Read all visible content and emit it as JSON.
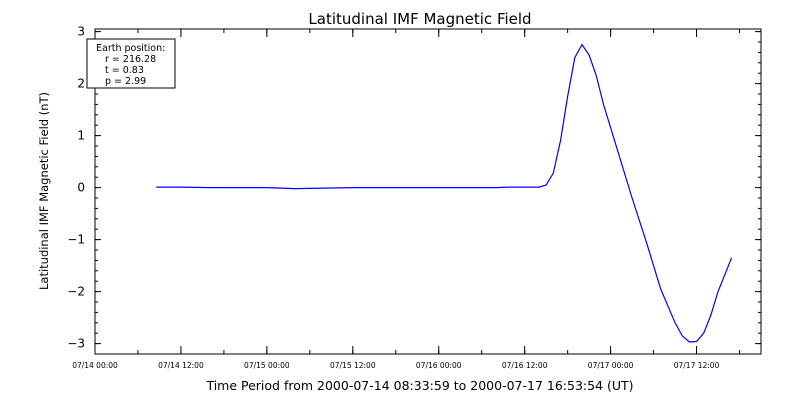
{
  "chart_data": {
    "type": "line",
    "title": "Latitudinal IMF Magnetic Field",
    "xlabel": "Time Period from 2000-07-14 08:33:59 to 2000-07-17 16:53:54 (UT)",
    "ylabel": "Latitudinal IMF Magnetic Field (nT)",
    "xlim": [
      "2000-07-14 00:00",
      "2000-07-17 21:00"
    ],
    "ylim": [
      -3.2,
      3.05
    ],
    "x_ticks": [
      "07/14 00:00",
      "07/14 12:00",
      "07/15 00:00",
      "07/15 12:00",
      "07/16 00:00",
      "07/16 12:00",
      "07/17 00:00",
      "07/17 12:00"
    ],
    "y_ticks": [
      "3",
      "2",
      "1",
      "0",
      "−1",
      "−2",
      "−3"
    ],
    "grid": false,
    "line_color": "#0000ff",
    "legend": {
      "placement": "top-left",
      "title": "Earth position:",
      "lines": [
        "r = 216.28",
        "t = 0.83",
        "p = 2.99"
      ]
    },
    "series": [
      {
        "points": [
          [
            "2000-07-14 08:34",
            0.01
          ],
          [
            "2000-07-14 12:00",
            0.01
          ],
          [
            "2000-07-14 16:00",
            0.0
          ],
          [
            "2000-07-15 00:00",
            0.0
          ],
          [
            "2000-07-15 04:00",
            -0.02
          ],
          [
            "2000-07-15 12:00",
            0.0
          ],
          [
            "2000-07-16 00:00",
            0.0
          ],
          [
            "2000-07-16 08:00",
            0.0
          ],
          [
            "2000-07-16 10:00",
            0.01
          ],
          [
            "2000-07-16 14:00",
            0.01
          ],
          [
            "2000-07-16 15:00",
            0.05
          ],
          [
            "2000-07-16 16:00",
            0.28
          ],
          [
            "2000-07-16 17:00",
            0.9
          ],
          [
            "2000-07-16 18:00",
            1.75
          ],
          [
            "2000-07-16 19:00",
            2.5
          ],
          [
            "2000-07-16 20:00",
            2.75
          ],
          [
            "2000-07-16 21:00",
            2.55
          ],
          [
            "2000-07-16 22:00",
            2.15
          ],
          [
            "2000-07-16 23:00",
            1.6
          ],
          [
            "2000-07-17 01:00",
            0.7
          ],
          [
            "2000-07-17 03:00",
            -0.2
          ],
          [
            "2000-07-17 05:00",
            -1.05
          ],
          [
            "2000-07-17 07:00",
            -1.95
          ],
          [
            "2000-07-17 09:00",
            -2.6
          ],
          [
            "2000-07-17 10:00",
            -2.85
          ],
          [
            "2000-07-17 11:00",
            -2.97
          ],
          [
            "2000-07-17 12:00",
            -2.96
          ],
          [
            "2000-07-17 13:00",
            -2.8
          ],
          [
            "2000-07-17 14:00",
            -2.45
          ],
          [
            "2000-07-17 15:00",
            -2.0
          ],
          [
            "2000-07-17 16:54",
            -1.35
          ]
        ]
      }
    ]
  }
}
